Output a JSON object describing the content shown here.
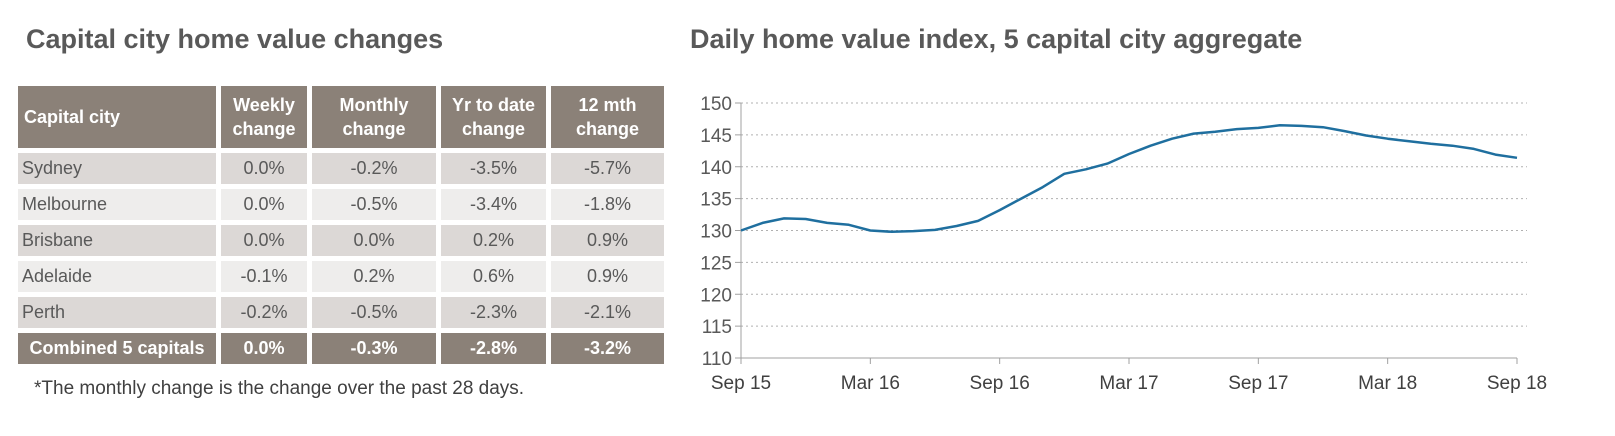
{
  "table": {
    "title": "Capital city home value changes",
    "headers": [
      "Capital city",
      "Weekly change",
      "Monthly change",
      "Yr to date change",
      "12 mth change"
    ],
    "rows": [
      [
        "Sydney",
        "0.0%",
        "-0.2%",
        "-3.5%",
        "-5.7%"
      ],
      [
        "Melbourne",
        "0.0%",
        "-0.5%",
        "-3.4%",
        "-1.8%"
      ],
      [
        "Brisbane",
        "0.0%",
        "0.0%",
        "0.2%",
        "0.9%"
      ],
      [
        "Adelaide",
        "-0.1%",
        "0.2%",
        "0.6%",
        "0.9%"
      ],
      [
        "Perth",
        "-0.2%",
        "-0.5%",
        "-2.3%",
        "-2.1%"
      ]
    ],
    "total": [
      "Combined 5 capitals",
      "0.0%",
      "-0.3%",
      "-2.8%",
      "-3.2%"
    ],
    "footnote": "*The monthly change is the change over the past 28 days.",
    "colors": {
      "header": "#8b8178",
      "row_dark": "#dcd8d6",
      "row_light": "#eeedec"
    }
  },
  "chart_data": {
    "type": "line",
    "title": "Daily home value index, 5 capital city aggregate",
    "x_ticks": [
      "Sep 15",
      "Mar 16",
      "Sep 16",
      "Mar 17",
      "Sep 17",
      "Mar 18",
      "Sep 18"
    ],
    "y_ticks": [
      110,
      115,
      120,
      125,
      130,
      135,
      140,
      145,
      150
    ],
    "ylim": [
      110,
      150
    ],
    "xlim": [
      "2015-09",
      "2018-09"
    ],
    "grid": "horizontal dotted",
    "color": "#1f6f9f",
    "x": [
      "2015-09",
      "2015-10",
      "2015-11",
      "2015-12",
      "2016-01",
      "2016-02",
      "2016-03",
      "2016-04",
      "2016-05",
      "2016-06",
      "2016-07",
      "2016-08",
      "2016-09",
      "2016-10",
      "2016-11",
      "2016-12",
      "2017-01",
      "2017-02",
      "2017-03",
      "2017-04",
      "2017-05",
      "2017-06",
      "2017-07",
      "2017-08",
      "2017-09",
      "2017-10",
      "2017-11",
      "2017-12",
      "2018-01",
      "2018-02",
      "2018-03",
      "2018-04",
      "2018-05",
      "2018-06",
      "2018-07",
      "2018-08",
      "2018-09"
    ],
    "values": [
      130.0,
      131.2,
      131.9,
      131.8,
      131.2,
      130.9,
      130.0,
      129.8,
      129.9,
      130.1,
      130.7,
      131.5,
      133.2,
      135.0,
      136.8,
      138.9,
      139.6,
      140.5,
      142.0,
      143.3,
      144.4,
      145.2,
      145.5,
      145.9,
      146.1,
      146.5,
      146.4,
      146.2,
      145.6,
      144.9,
      144.4,
      144.0,
      143.6,
      143.3,
      142.8,
      141.9,
      141.4
    ]
  }
}
